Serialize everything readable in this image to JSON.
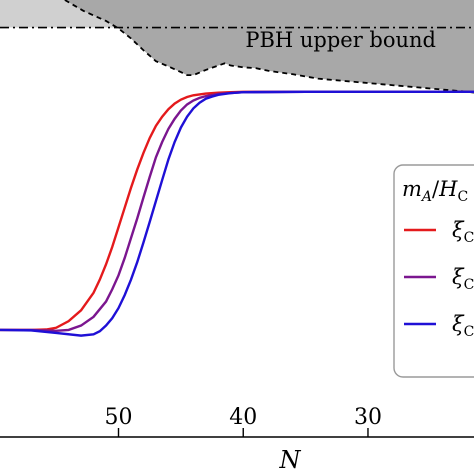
{
  "chart_data": {
    "type": "line",
    "xlabel": "N",
    "x_reversed": true,
    "xlim": [
      59.5,
      21.5
    ],
    "ylim": [
      0,
      1
    ],
    "x_ticks": [
      {
        "value": 50,
        "label": "50"
      },
      {
        "value": 40,
        "label": "40"
      },
      {
        "value": 30,
        "label": "30"
      }
    ],
    "grid": false,
    "annotation": "PBH upper bound",
    "colors": {
      "red": "#e41a1c",
      "purple": "#7b168f",
      "blue": "#1f10d6",
      "bound_fill": "#a8a8a8",
      "bound_fill_light": "#d0d0d0"
    },
    "series": [
      {
        "color": "#e41a1c",
        "x": [
          59.5,
          57,
          55.8,
          55,
          54,
          53,
          52,
          51.5,
          51,
          50.5,
          50,
          49.5,
          49,
          48.5,
          48,
          47.5,
          47,
          46.5,
          46,
          45.5,
          45,
          44.5,
          44,
          43,
          42,
          41,
          40,
          35,
          30,
          25,
          21.5
        ],
        "y": [
          0.245,
          0.245,
          0.246,
          0.25,
          0.265,
          0.29,
          0.33,
          0.36,
          0.395,
          0.435,
          0.48,
          0.525,
          0.57,
          0.612,
          0.65,
          0.684,
          0.712,
          0.733,
          0.75,
          0.763,
          0.772,
          0.778,
          0.782,
          0.786,
          0.788,
          0.789,
          0.79,
          0.79,
          0.79,
          0.79,
          0.79
        ]
      },
      {
        "color": "#7b168f",
        "x": [
          59.5,
          57,
          55,
          54,
          53,
          52,
          51,
          50.5,
          50,
          49.5,
          49,
          48.5,
          48,
          47.5,
          47,
          46.5,
          46,
          45.5,
          45,
          44.5,
          44,
          43.5,
          43,
          42,
          41,
          40,
          35,
          30,
          25,
          21.5
        ],
        "y": [
          0.245,
          0.245,
          0.243,
          0.245,
          0.255,
          0.275,
          0.31,
          0.338,
          0.37,
          0.41,
          0.455,
          0.5,
          0.548,
          0.595,
          0.64,
          0.675,
          0.705,
          0.728,
          0.747,
          0.761,
          0.77,
          0.776,
          0.78,
          0.785,
          0.787,
          0.789,
          0.79,
          0.79,
          0.79,
          0.79
        ]
      },
      {
        "color": "#1f10d6",
        "x": [
          59.5,
          57,
          55,
          53,
          52,
          51.5,
          51,
          50.5,
          50,
          49.5,
          49,
          48.5,
          48,
          47.5,
          47,
          46.5,
          46,
          45.5,
          45,
          44.5,
          44,
          43.5,
          43,
          42.5,
          42,
          41,
          40,
          35,
          30,
          25,
          21.5
        ],
        "y": [
          0.245,
          0.244,
          0.238,
          0.232,
          0.235,
          0.242,
          0.255,
          0.272,
          0.295,
          0.325,
          0.36,
          0.4,
          0.445,
          0.492,
          0.54,
          0.588,
          0.635,
          0.675,
          0.708,
          0.733,
          0.752,
          0.765,
          0.774,
          0.779,
          0.783,
          0.787,
          0.789,
          0.79,
          0.79,
          0.79,
          0.79
        ]
      }
    ],
    "bound_curve": {
      "x": [
        54.3,
        52.8,
        51,
        50,
        49,
        48,
        47,
        46,
        45,
        44.5,
        44,
        43,
        42,
        41.5,
        41,
        40,
        39,
        38,
        36,
        34,
        32,
        30,
        28,
        26,
        24,
        22,
        21.5
      ],
      "y": [
        1.0,
        0.975,
        0.952,
        0.935,
        0.912,
        0.885,
        0.86,
        0.848,
        0.835,
        0.828,
        0.828,
        0.84,
        0.85,
        0.855,
        0.85,
        0.846,
        0.844,
        0.838,
        0.83,
        0.82,
        0.815,
        0.81,
        0.805,
        0.8,
        0.795,
        0.79,
        0.788
      ]
    },
    "bound_flat_level": 0.937,
    "legend": {
      "placement": "right",
      "title": "m_A/H_C",
      "title_parts": {
        "m": "m",
        "m_sub": "A",
        "slash": "/",
        "h": "H",
        "h_sub": "C"
      },
      "entries": [
        {
          "symbol": "ξ",
          "sub": "C",
          "color": "#e41a1c"
        },
        {
          "symbol": "ξ",
          "sub": "C",
          "color": "#7b168f"
        },
        {
          "symbol": "ξ",
          "sub": "C",
          "color": "#1f10d6"
        }
      ]
    }
  }
}
